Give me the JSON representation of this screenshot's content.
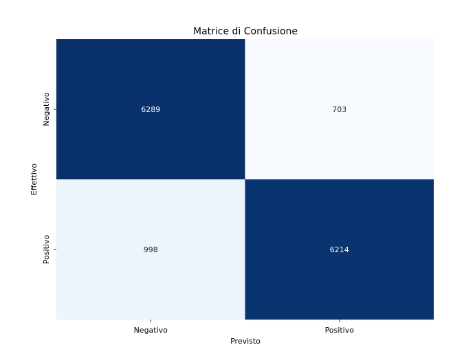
{
  "chart_data": {
    "type": "heatmap",
    "title": "Matrice di Confusione",
    "xlabel": "Previsto",
    "ylabel": "Effettivo",
    "x_categories": [
      "Negativo",
      "Positivo"
    ],
    "y_categories": [
      "Negativo",
      "Positivo"
    ],
    "values": [
      [
        6289,
        703
      ],
      [
        998,
        6214
      ]
    ],
    "colormap": "Blues",
    "colorbar": false,
    "colors": {
      "low": "#f7fbff",
      "high": "#08306b",
      "text_on_dark": "#ffffff",
      "text_on_light": "#262626"
    }
  }
}
